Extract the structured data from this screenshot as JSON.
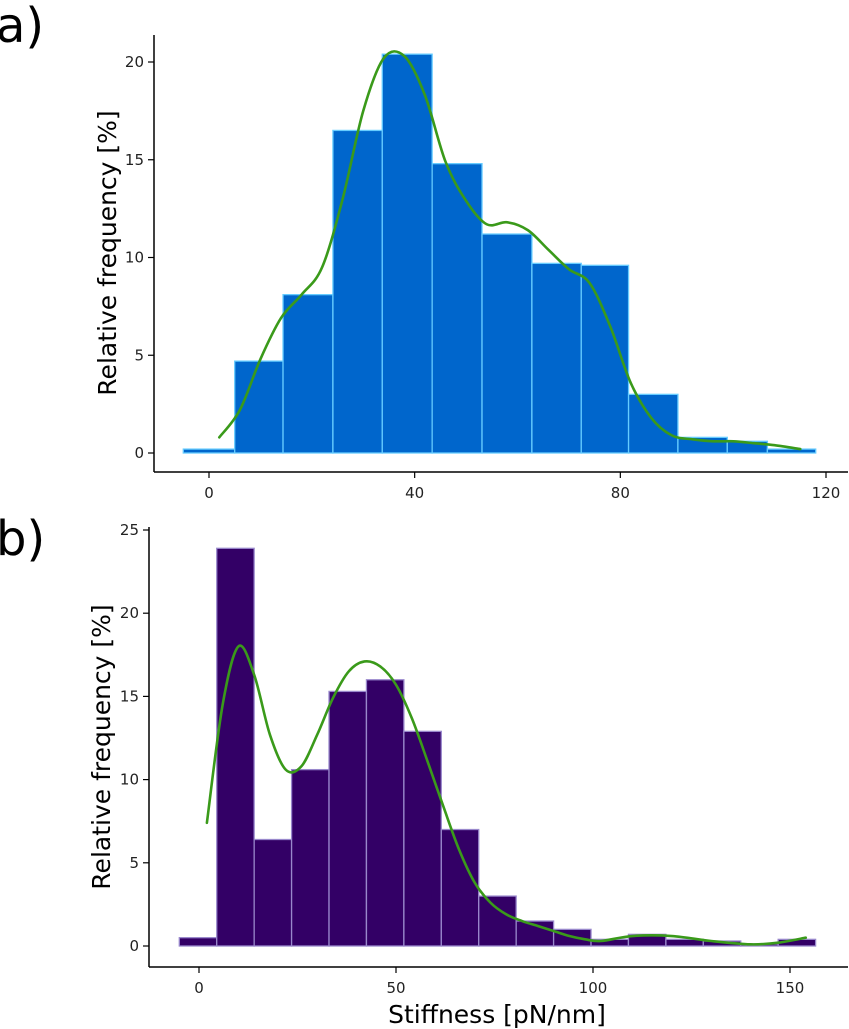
{
  "chart_data": [
    {
      "panel_label": "a)",
      "type": "bar",
      "title": "",
      "xlabel": "",
      "ylabel": "Relative frequency [%]",
      "xlim": [
        -10,
        122
      ],
      "ylim": [
        -0.9,
        21.5
      ],
      "xticks": [
        0,
        40,
        80,
        120
      ],
      "yticks": [
        0,
        5,
        10,
        15,
        20
      ],
      "bin_edges": [
        -5,
        5,
        14.4,
        24.1,
        33.7,
        43.4,
        53.1,
        62.8,
        72.4,
        81.6,
        91.2,
        100.8,
        108.6,
        118
      ],
      "values": [
        0.2,
        4.7,
        8.1,
        16.5,
        20.4,
        14.8,
        11.2,
        9.7,
        9.6,
        3.0,
        0.8,
        0.6,
        0.2
      ],
      "bar_fill": "#0066cc",
      "bar_edge": "#66ccff",
      "kde": {
        "name": "density",
        "color": "#3a9a1a",
        "x": [
          2,
          6,
          10,
          14,
          18,
          22,
          26,
          30,
          34,
          38,
          42,
          46,
          50,
          54,
          58,
          62,
          66,
          70,
          74,
          78,
          82,
          86,
          90,
          94,
          98,
          102,
          106,
          110,
          115
        ],
        "y": [
          0.8,
          2.2,
          4.8,
          6.9,
          8.1,
          9.5,
          13.0,
          17.5,
          20.2,
          20.3,
          18.3,
          14.9,
          12.9,
          11.7,
          11.8,
          11.4,
          10.4,
          9.4,
          8.7,
          6.5,
          3.6,
          1.8,
          0.9,
          0.7,
          0.6,
          0.6,
          0.5,
          0.4,
          0.2
        ]
      }
    },
    {
      "panel_label": "b)",
      "type": "bar",
      "title": "",
      "xlabel": "Stiffness [pN/nm]",
      "ylabel": "Relative frequency [%]",
      "xlim": [
        -11,
        162
      ],
      "ylim": [
        -1.2,
        25
      ],
      "xticks": [
        0,
        50,
        100,
        150
      ],
      "yticks": [
        0,
        5,
        10,
        15,
        20,
        25
      ],
      "bin_edges": [
        -5,
        4.5,
        14,
        23.5,
        33,
        42.5,
        52,
        61.5,
        71,
        80.5,
        90,
        99.5,
        109,
        118.5,
        128,
        137.5,
        147,
        156.5
      ],
      "values": [
        0.5,
        23.9,
        6.4,
        10.6,
        15.3,
        16.0,
        12.9,
        7.0,
        3.0,
        1.5,
        1.0,
        0.4,
        0.7,
        0.4,
        0.3,
        0.0,
        0.4
      ],
      "bar_fill": "#330066",
      "bar_edge": "#9988cc",
      "kde": {
        "name": "density",
        "color": "#3a9a1a",
        "x": [
          2,
          6,
          10,
          14,
          18,
          22,
          26,
          30,
          34,
          38,
          42,
          46,
          50,
          54,
          58,
          62,
          66,
          70,
          74,
          78,
          82,
          86,
          90,
          94,
          98,
          102,
          110,
          120,
          130,
          140,
          147,
          154
        ],
        "y": [
          7.4,
          14.5,
          18.0,
          16.3,
          12.7,
          10.6,
          10.8,
          12.7,
          14.9,
          16.5,
          17.1,
          16.8,
          15.7,
          13.7,
          11.1,
          8.4,
          5.8,
          3.8,
          2.6,
          1.9,
          1.5,
          1.2,
          0.9,
          0.6,
          0.4,
          0.3,
          0.6,
          0.6,
          0.3,
          0.1,
          0.2,
          0.5
        ]
      }
    }
  ]
}
